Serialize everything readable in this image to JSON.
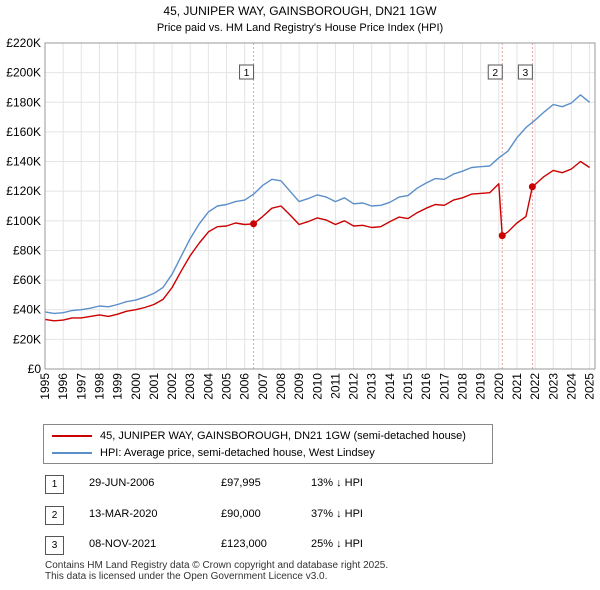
{
  "title_line1": "45, JUNIPER WAY, GAINSBOROUGH, DN21 1GW",
  "title_line2": "Price paid vs. HM Land Registry's House Price Index (HPI)",
  "colors": {
    "property": "#cc0000",
    "hpi": "#5b8fc9",
    "marker_line": "#e8a0a0",
    "grid": "#e4e4e4"
  },
  "chart_data": {
    "type": "line",
    "title": "Price paid vs. HM Land Registry's House Price Index (HPI)",
    "xlabel": "",
    "ylabel": "",
    "xlim": [
      1995.0,
      2025.3
    ],
    "ylim": [
      0,
      220000
    ],
    "yticks": [
      0,
      20000,
      40000,
      60000,
      80000,
      100000,
      120000,
      140000,
      160000,
      180000,
      200000,
      220000
    ],
    "ytick_labels": [
      "£0",
      "£20K",
      "£40K",
      "£60K",
      "£80K",
      "£100K",
      "£120K",
      "£140K",
      "£160K",
      "£180K",
      "£200K",
      "£220K"
    ],
    "xticks": [
      1995,
      1996,
      1997,
      1998,
      1999,
      2000,
      2001,
      2002,
      2003,
      2004,
      2005,
      2006,
      2007,
      2008,
      2009,
      2010,
      2011,
      2012,
      2013,
      2014,
      2015,
      2016,
      2017,
      2018,
      2019,
      2020,
      2021,
      2022,
      2023,
      2024,
      2025
    ],
    "grid": true,
    "series": [
      {
        "name": "HPI: Average price, semi-detached house, West Lindsey",
        "color": "#5b8fc9",
        "x": [
          1995.0,
          1995.5,
          1996.0,
          1996.5,
          1997.0,
          1997.5,
          1998.0,
          1998.5,
          1999.0,
          1999.5,
          2000.0,
          2000.5,
          2001.0,
          2001.5,
          2002.0,
          2002.5,
          2003.0,
          2003.5,
          2004.0,
          2004.5,
          2005.0,
          2005.5,
          2006.0,
          2006.5,
          2007.0,
          2007.5,
          2008.0,
          2008.5,
          2009.0,
          2009.5,
          2010.0,
          2010.5,
          2011.0,
          2011.5,
          2012.0,
          2012.5,
          2013.0,
          2013.5,
          2014.0,
          2014.5,
          2015.0,
          2015.5,
          2016.0,
          2016.5,
          2017.0,
          2017.5,
          2018.0,
          2018.5,
          2019.0,
          2019.5,
          2020.0,
          2020.5,
          2021.0,
          2021.5,
          2022.0,
          2022.5,
          2023.0,
          2023.5,
          2024.0,
          2024.5,
          2025.0
        ],
        "y": [
          38500,
          37500,
          38000,
          39500,
          40000,
          41000,
          42500,
          42000,
          43500,
          45500,
          46500,
          48500,
          51000,
          55000,
          64000,
          76000,
          88000,
          98000,
          106000,
          110000,
          111000,
          113000,
          114000,
          118000,
          124000,
          128000,
          127000,
          120000,
          113000,
          115000,
          117500,
          116000,
          113000,
          115500,
          111500,
          112000,
          110000,
          110500,
          112500,
          116000,
          117000,
          122000,
          125500,
          128500,
          128000,
          131500,
          133500,
          136000,
          136500,
          137000,
          142500,
          147000,
          156000,
          163000,
          168000,
          173500,
          178500,
          177000,
          179500,
          185000,
          180000
        ]
      },
      {
        "name": "45, JUNIPER WAY, GAINSBOROUGH, DN21 1GW (semi-detached house)",
        "color": "#cc0000",
        "x": [
          1995.0,
          1995.5,
          1996.0,
          1996.5,
          1997.0,
          1997.5,
          1998.0,
          1998.5,
          1999.0,
          1999.5,
          2000.0,
          2000.5,
          2001.0,
          2001.5,
          2002.0,
          2002.5,
          2003.0,
          2003.5,
          2004.0,
          2004.5,
          2005.0,
          2005.5,
          2006.0,
          2006.49,
          2007.0,
          2007.5,
          2008.0,
          2008.5,
          2009.0,
          2009.5,
          2010.0,
          2010.5,
          2011.0,
          2011.5,
          2012.0,
          2012.5,
          2013.0,
          2013.5,
          2014.0,
          2014.5,
          2015.0,
          2015.5,
          2016.0,
          2016.5,
          2017.0,
          2017.5,
          2018.0,
          2018.5,
          2019.0,
          2019.5,
          2020.0,
          2020.19,
          2020.5,
          2021.0,
          2021.5,
          2021.85,
          2022.0,
          2022.5,
          2023.0,
          2023.5,
          2024.0,
          2024.5,
          2025.0
        ],
        "y": [
          33500,
          32500,
          33000,
          34500,
          34500,
          35500,
          36500,
          35500,
          37000,
          39000,
          40000,
          41500,
          43500,
          47000,
          55000,
          66000,
          76500,
          85000,
          92500,
          96000,
          96500,
          98500,
          97500,
          97995,
          103000,
          108500,
          110000,
          104000,
          97500,
          99500,
          102000,
          100500,
          97500,
          100000,
          96500,
          97000,
          95500,
          96000,
          99500,
          102500,
          101500,
          105500,
          108500,
          111000,
          110500,
          114000,
          115500,
          118000,
          118500,
          119000,
          125000,
          90000,
          92500,
          98500,
          103000,
          123000,
          124500,
          130000,
          134000,
          132500,
          135000,
          140000,
          136000
        ]
      }
    ],
    "sale_markers": [
      {
        "label": "1",
        "x": 2006.49,
        "y": 97995
      },
      {
        "label": "2",
        "x": 2020.19,
        "y": 90000
      },
      {
        "label": "3",
        "x": 2021.85,
        "y": 123000
      }
    ]
  },
  "legend": {
    "property_label": "45, JUNIPER WAY, GAINSBOROUGH, DN21 1GW (semi-detached house)",
    "hpi_label": "HPI: Average price, semi-detached house, West Lindsey"
  },
  "transactions": [
    {
      "num": "1",
      "date": "29-JUN-2006",
      "price": "£97,995",
      "hpi": "13% ↓ HPI"
    },
    {
      "num": "2",
      "date": "13-MAR-2020",
      "price": "£90,000",
      "hpi": "37% ↓ HPI"
    },
    {
      "num": "3",
      "date": "08-NOV-2021",
      "price": "£123,000",
      "hpi": "25% ↓ HPI"
    }
  ],
  "footer": {
    "line1": "Contains HM Land Registry data © Crown copyright and database right 2025.",
    "line2": "This data is licensed under the Open Government Licence v3.0."
  }
}
